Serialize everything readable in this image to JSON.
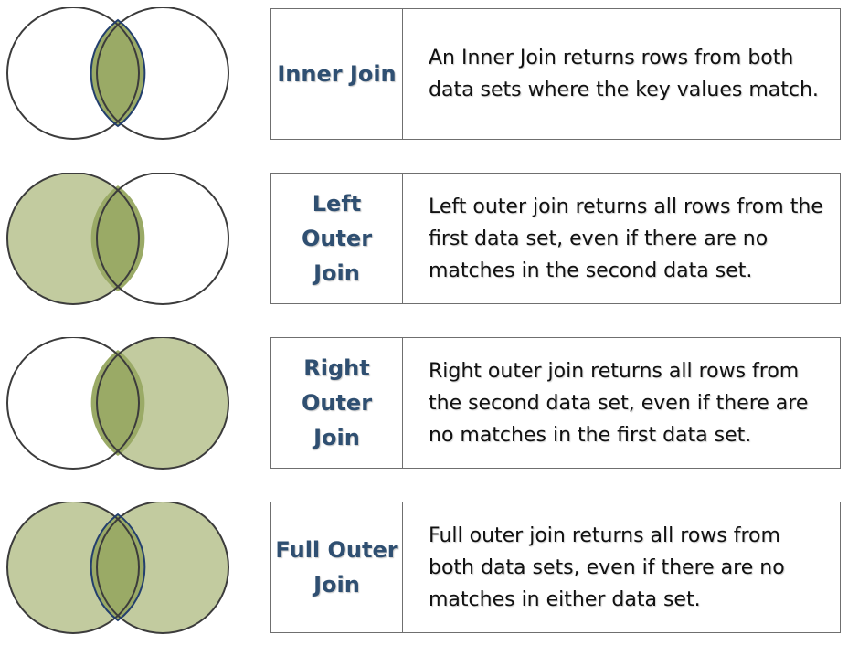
{
  "joins": [
    {
      "label": "Inner Join",
      "description": "An Inner Join returns rows from both data sets where the key values match.",
      "highlight": "intersection"
    },
    {
      "label": "Left Outer Join",
      "description": "Left outer join returns all rows from the first data set, even if there are no matches in the second data set.",
      "highlight": "left"
    },
    {
      "label": "Right Outer Join",
      "description": "Right outer join returns all rows from the second data set, even if there are no matches in the first data set.",
      "highlight": "right"
    },
    {
      "label": "Full Outer Join",
      "description": "Full outer join returns all rows from both data sets, even if there are no matches in either data set.",
      "highlight": "full"
    }
  ],
  "colors": {
    "set_fill": "#c2cb9f",
    "intersection_fill": "#9aaa66",
    "circle_stroke": "#3c3c3c",
    "intersection_stroke": "#233f6e",
    "label_text": "#2f4f71",
    "border": "#6f6f6f"
  }
}
